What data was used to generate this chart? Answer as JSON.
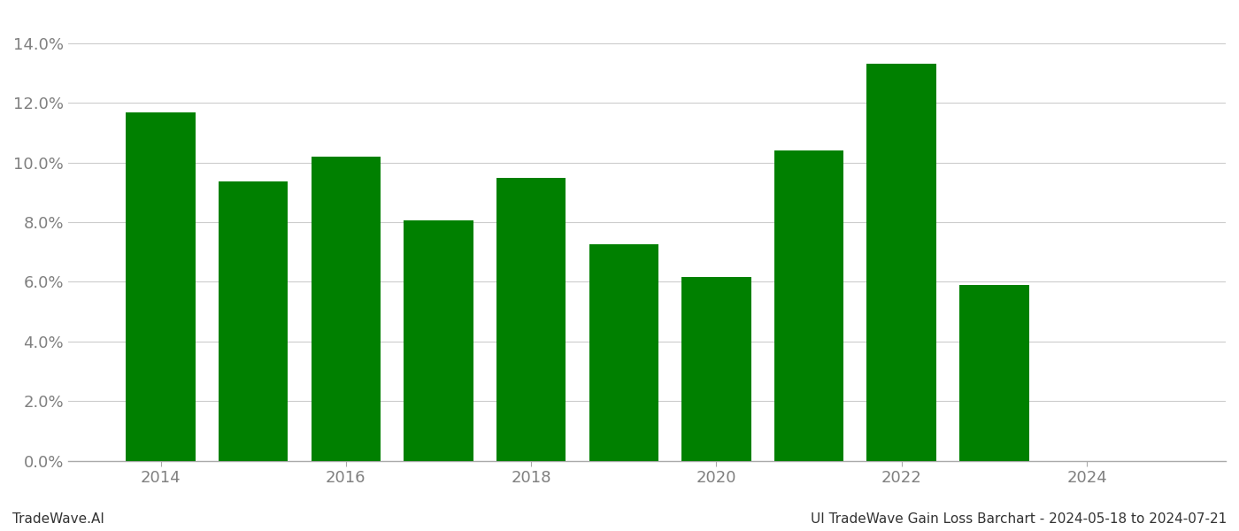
{
  "years": [
    2014,
    2015,
    2016,
    2017,
    2018,
    2019,
    2020,
    2021,
    2022,
    2023,
    2024
  ],
  "values": [
    0.1168,
    0.0935,
    0.102,
    0.0805,
    0.0948,
    0.0725,
    0.0615,
    0.104,
    0.133,
    0.059,
    0.0
  ],
  "bar_color": "#008000",
  "background_color": "#ffffff",
  "tick_color": "#808080",
  "grid_color": "#cccccc",
  "footer_left": "TradeWave.AI",
  "footer_right": "UI TradeWave Gain Loss Barchart - 2024-05-18 to 2024-07-21",
  "ylim": [
    0,
    0.15
  ],
  "yticks": [
    0.0,
    0.02,
    0.04,
    0.06,
    0.08,
    0.1,
    0.12,
    0.14
  ],
  "xlim": [
    2013.0,
    2025.5
  ],
  "xticks": [
    2014,
    2016,
    2018,
    2020,
    2022,
    2024
  ],
  "bar_width": 0.75,
  "figsize": [
    14.0,
    6.0
  ],
  "dpi": 100,
  "font_family": "DejaVu Sans",
  "tick_fontsize": 13,
  "footer_fontsize": 11
}
